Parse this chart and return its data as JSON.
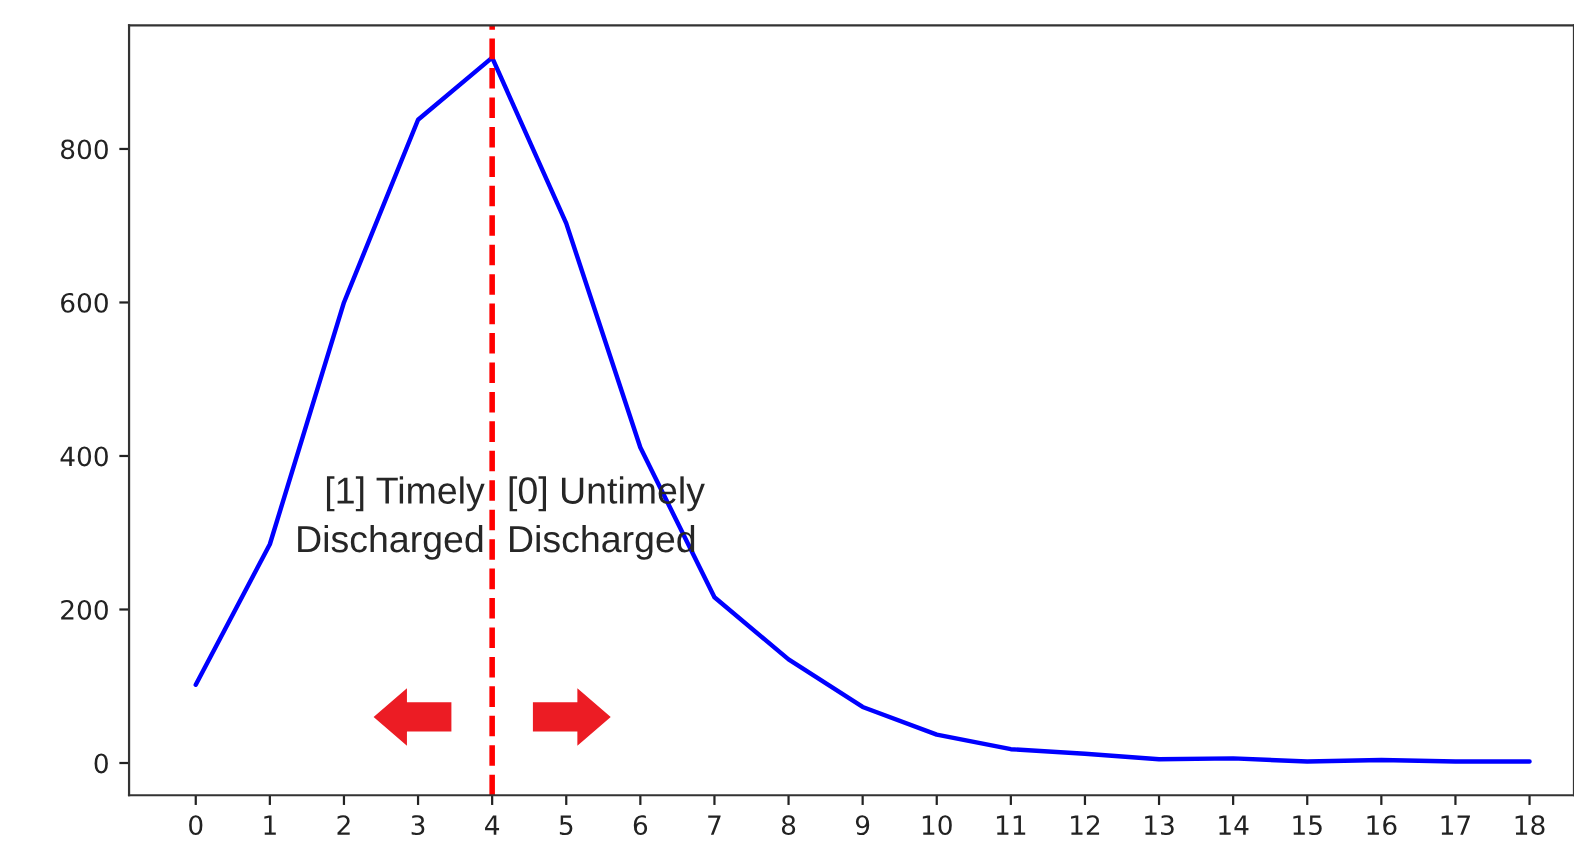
{
  "chart_data": {
    "type": "line",
    "x": [
      0,
      1,
      2,
      3,
      4,
      5,
      6,
      7,
      8,
      9,
      10,
      11,
      12,
      13,
      14,
      15,
      16,
      17,
      18
    ],
    "series": [
      {
        "color": "#0000ff",
        "values": [
          102,
          285,
          600,
          838,
          919,
          703,
          411,
          216,
          135,
          73,
          37,
          18,
          12,
          5,
          6,
          2,
          4,
          2,
          2
        ]
      }
    ],
    "xlim": [
      -0.9,
      18.6
    ],
    "xticks": [
      0,
      1,
      2,
      3,
      4,
      5,
      6,
      7,
      8,
      9,
      10,
      11,
      12,
      13,
      14,
      15,
      16,
      17,
      18
    ],
    "ylim": [
      -42,
      961
    ],
    "yticks": [
      0,
      200,
      400,
      600,
      800
    ],
    "ref_lines": [
      {
        "axis": "x",
        "value": 4,
        "color": "#ff0000",
        "line_style": "dashed"
      }
    ],
    "annotations": [
      "[1] Timely\nDischarged",
      "[0] Untimely\nDischarged"
    ],
    "grid": false,
    "legend": false
  }
}
